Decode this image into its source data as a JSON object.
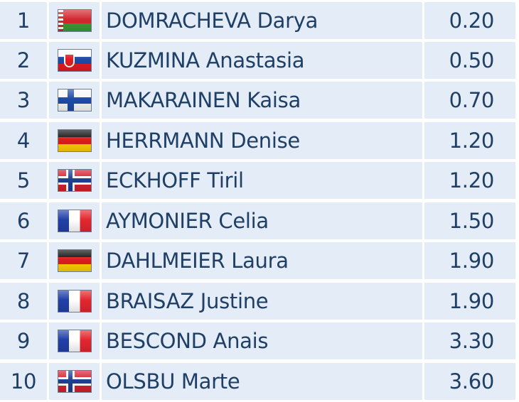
{
  "results": [
    {
      "rank": "1",
      "flag_icon": "flag-BLR",
      "name": "DOMRACHEVA Darya",
      "time": "0.20"
    },
    {
      "rank": "2",
      "flag_icon": "flag-SVK",
      "name": "KUZMINA Anastasia",
      "time": "0.50"
    },
    {
      "rank": "3",
      "flag_icon": "flag-FIN",
      "name": "MAKARAINEN Kaisa",
      "time": "0.70"
    },
    {
      "rank": "4",
      "flag_icon": "flag-GER",
      "name": "HERRMANN Denise",
      "time": "1.20"
    },
    {
      "rank": "5",
      "flag_icon": "flag-NOR",
      "name": "ECKHOFF Tiril",
      "time": "1.20"
    },
    {
      "rank": "6",
      "flag_icon": "flag-FRA",
      "name": "AYMONIER Celia",
      "time": "1.50"
    },
    {
      "rank": "7",
      "flag_icon": "flag-GER",
      "name": "DAHLMEIER Laura",
      "time": "1.90"
    },
    {
      "rank": "8",
      "flag_icon": "flag-FRA",
      "name": "BRAISAZ Justine",
      "time": "1.90"
    },
    {
      "rank": "9",
      "flag_icon": "flag-FRA",
      "name": "BESCOND Anais",
      "time": "3.30"
    },
    {
      "rank": "10",
      "flag_icon": "flag-NOR",
      "name": "OLSBU Marte",
      "time": "3.60"
    }
  ],
  "colors": {
    "cell_background": "#e3ecf7",
    "text": "#1f3f66",
    "grid_lines": "#ffffff"
  }
}
